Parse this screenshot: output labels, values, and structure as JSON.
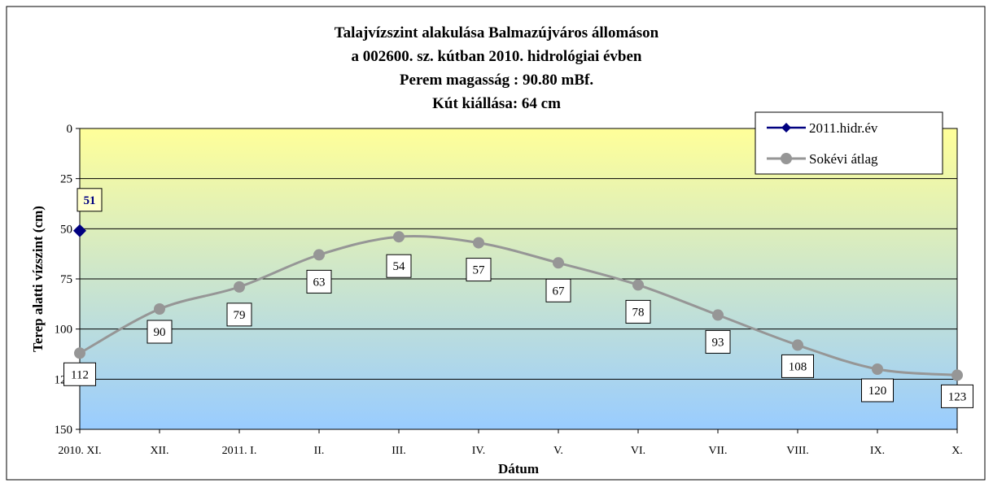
{
  "chart_data": {
    "type": "line",
    "title": [
      "Talajvízszint alakulása Balmazújváros állomáson",
      "a 002600. sz. kútban 2010. hidrológiai évben",
      "Perem magasság : 90.80 mBf.",
      "Kút kiállása: 64 cm"
    ],
    "xlabel": "Dátum",
    "ylabel": "Terep alatti vízszint (cm)",
    "categories": [
      "2010. XI.",
      "XII.",
      "2011. I.",
      "II.",
      "III.",
      "IV.",
      "V.",
      "VI.",
      "VII.",
      "VIII.",
      "IX.",
      "X."
    ],
    "ylim": [
      0,
      150
    ],
    "y_inverted": true,
    "yticks": [
      "0",
      "25",
      "50",
      "75",
      "100",
      "125",
      "150"
    ],
    "grid": true,
    "legend_position": "top-right",
    "series": [
      {
        "name": "2011.hidr.év",
        "color": "#000080",
        "marker": "diamond",
        "values": [
          51,
          null,
          null,
          null,
          null,
          null,
          null,
          null,
          null,
          null,
          null,
          null
        ],
        "labels": [
          "51"
        ]
      },
      {
        "name": "Sokévi átlag",
        "color": "#969696",
        "marker": "circle",
        "values": [
          112,
          90,
          79,
          63,
          54,
          57,
          67,
          78,
          93,
          108,
          120,
          123
        ],
        "labels": [
          "112",
          "90",
          "79",
          "63",
          "54",
          "57",
          "67",
          "78",
          "93",
          "108",
          "120",
          "123"
        ]
      }
    ],
    "background_gradient": [
      "#ffff99",
      "#99ccff"
    ]
  }
}
